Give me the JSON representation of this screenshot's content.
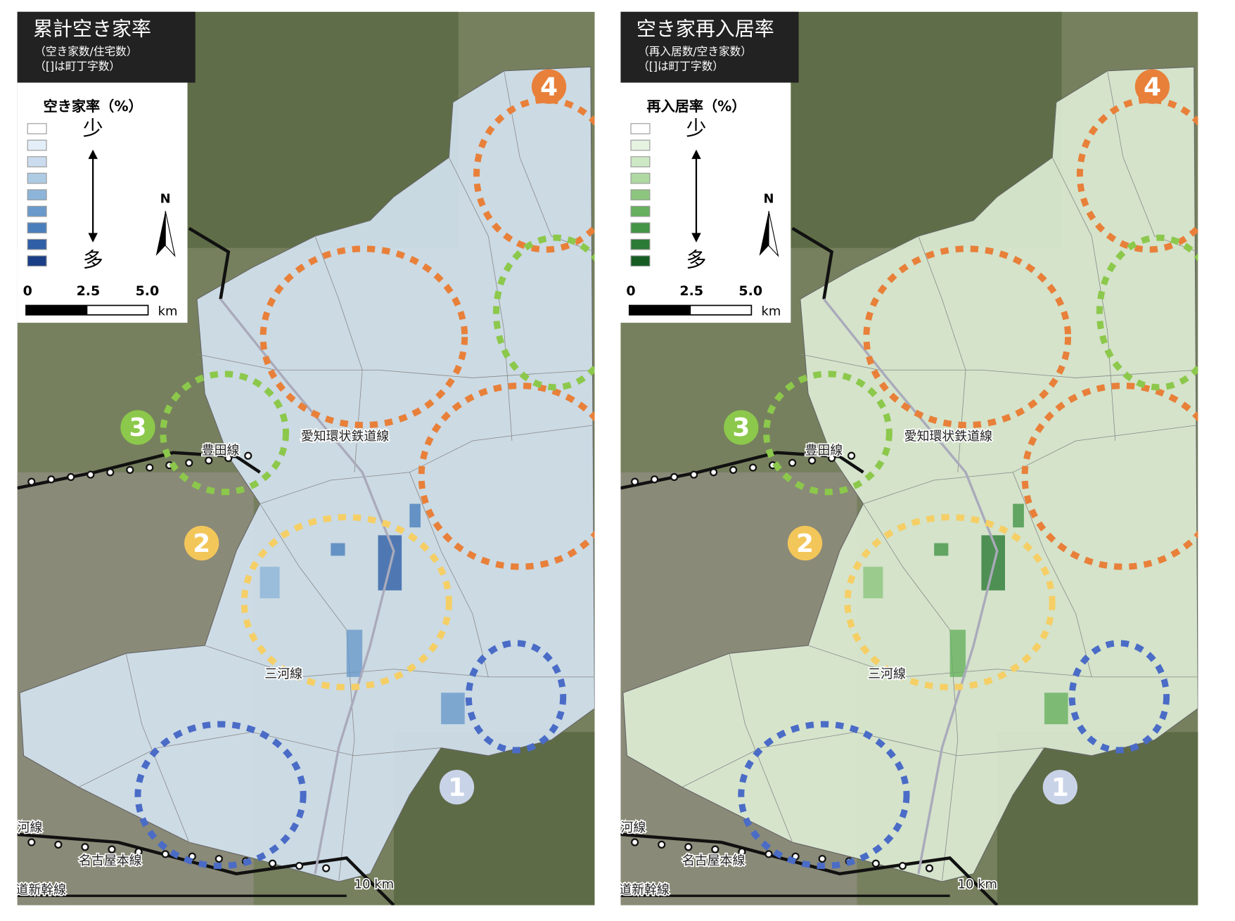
{
  "panels": [
    {
      "title": "累計空き家率",
      "subtitle": [
        "（空き家数/住宅数）",
        "（[]は町丁字数）"
      ],
      "legend": {
        "title": "空き家率（%）",
        "low": "少",
        "high": "多",
        "colors": [
          "#ffffff",
          "#e3eef8",
          "#cbdcee",
          "#aecbe4",
          "#8db5d9",
          "#6a9acb",
          "#4a7fbc",
          "#2f5fa6",
          "#1b3f86"
        ]
      },
      "scale": {
        "ticks": [
          "0",
          "2.5",
          "5.0"
        ],
        "unit": "km"
      },
      "north": "N",
      "map_fill": "#d3e2ef",
      "markers": [
        "1",
        "2",
        "3",
        "4"
      ],
      "labels": [
        "愛知環状鉄道線",
        "豊田線",
        "三河線",
        "名古屋本線",
        "道新幹線",
        "河線",
        "10 km"
      ]
    },
    {
      "title": "空き家再入居率",
      "subtitle": [
        "（再入居数/空き家数）",
        "（[]は町丁字数）"
      ],
      "legend": {
        "title": "再入居率（%）",
        "low": "少",
        "high": "多",
        "colors": [
          "#ffffff",
          "#e6f3e1",
          "#cde8c4",
          "#aed9a2",
          "#8cc67e",
          "#66b05f",
          "#459547",
          "#2c7a35",
          "#165d24"
        ]
      },
      "scale": {
        "ticks": [
          "0",
          "2.5",
          "5.0"
        ],
        "unit": "km"
      },
      "north": "N",
      "map_fill": "#dcecd4",
      "markers": [
        "1",
        "2",
        "3",
        "4"
      ],
      "labels": [
        "愛知環状鉄道線",
        "豊田線",
        "三河線",
        "名古屋本線",
        "道新幹線",
        "河線",
        "10 km"
      ]
    }
  ]
}
